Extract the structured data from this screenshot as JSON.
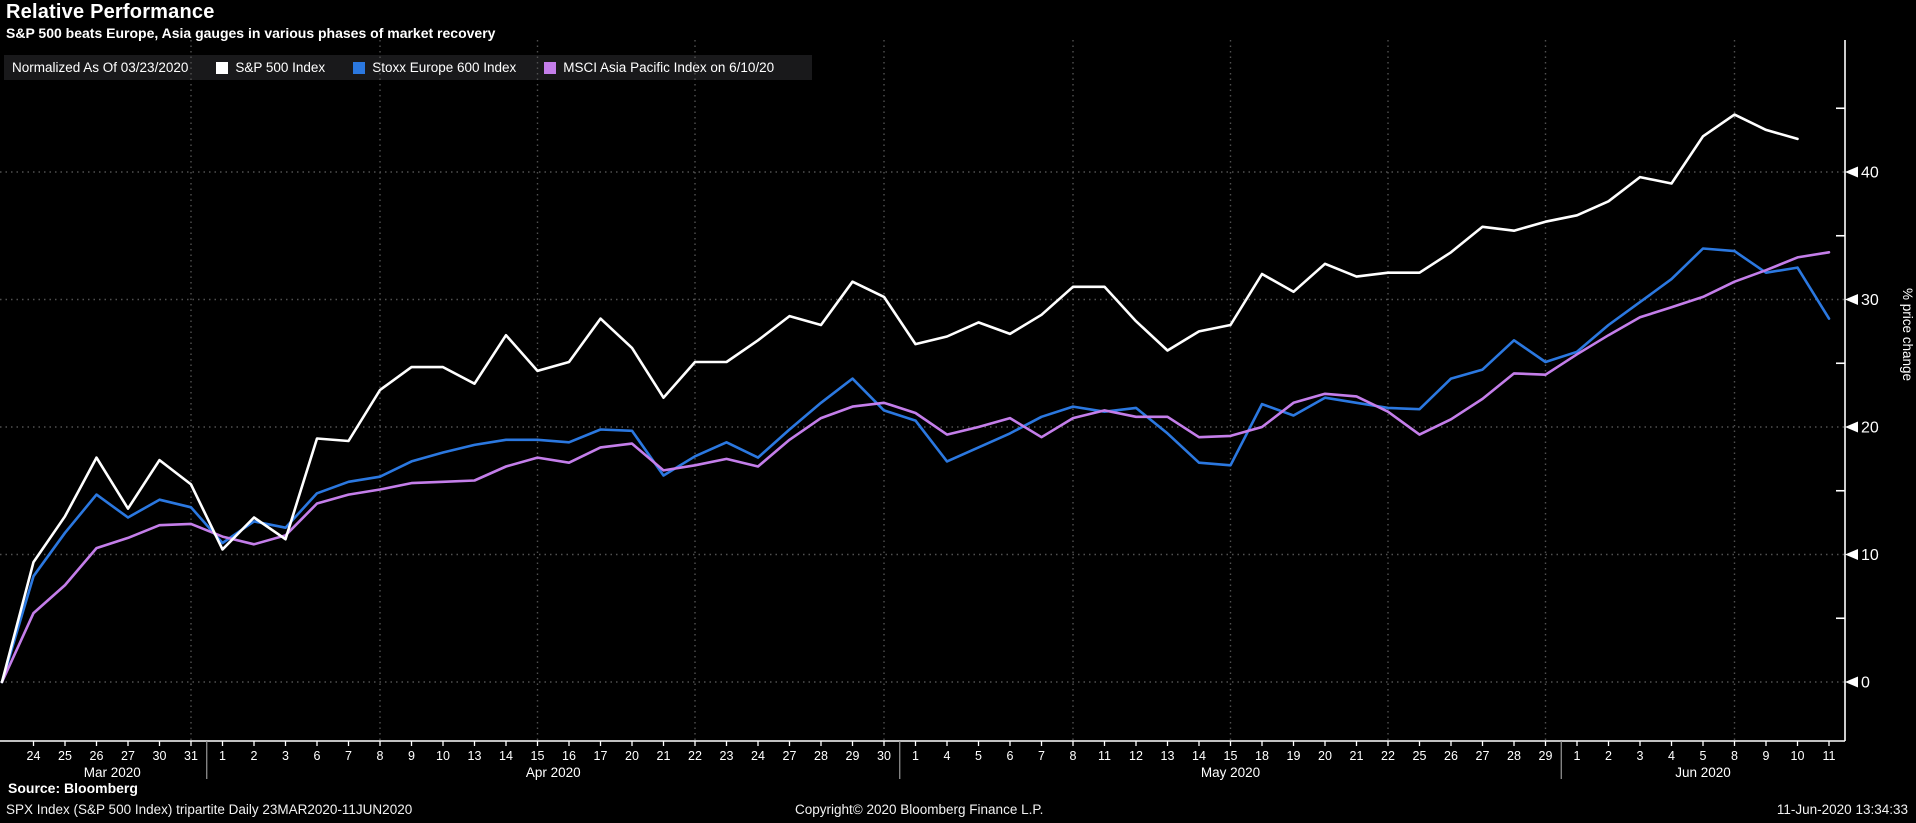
{
  "header": {
    "title": "Relative Performance",
    "subtitle": "S&P 500 beats Europe, Asia gauges in various phases of market recovery"
  },
  "legend": {
    "note": "Normalized As Of 03/23/2020",
    "items": [
      {
        "label": "S&P 500 Index",
        "color": "#FFFFFF"
      },
      {
        "label": "Stoxx Europe 600 Index",
        "color": "#2B78E0"
      },
      {
        "label": "MSCI Asia Pacific Index on 6/10/20",
        "color": "#C47EEA"
      }
    ]
  },
  "chart_data": {
    "type": "line",
    "title": "Relative Performance",
    "ylabel": "% price change",
    "ylim": [
      -4.6,
      50.4
    ],
    "grid": "dotted",
    "legend_position": "top-left",
    "y_ticks": [
      0,
      10,
      20,
      30,
      40
    ],
    "y_minor_ticks": [
      5,
      15,
      25,
      35,
      45
    ],
    "dates": [
      "3/23",
      "3/24",
      "3/25",
      "3/26",
      "3/27",
      "3/30",
      "3/31",
      "4/1",
      "4/2",
      "4/3",
      "4/6",
      "4/7",
      "4/8",
      "4/9",
      "4/10",
      "4/13",
      "4/14",
      "4/15",
      "4/16",
      "4/17",
      "4/20",
      "4/21",
      "4/22",
      "4/23",
      "4/24",
      "4/27",
      "4/28",
      "4/29",
      "4/30",
      "5/1",
      "5/4",
      "5/5",
      "5/6",
      "5/7",
      "5/8",
      "5/11",
      "5/12",
      "5/13",
      "5/14",
      "5/15",
      "5/18",
      "5/19",
      "5/20",
      "5/21",
      "5/22",
      "5/25",
      "5/26",
      "5/27",
      "5/28",
      "5/29",
      "6/1",
      "6/2",
      "6/3",
      "6/4",
      "6/5",
      "6/8",
      "6/9",
      "6/10",
      "6/11"
    ],
    "x_tick_labels": [
      "24",
      "25",
      "26",
      "27",
      "30",
      "31",
      "1",
      "2",
      "3",
      "6",
      "7",
      "8",
      "9",
      "10",
      "13",
      "14",
      "15",
      "16",
      "17",
      "20",
      "21",
      "22",
      "23",
      "24",
      "27",
      "28",
      "29",
      "30",
      "1",
      "4",
      "5",
      "6",
      "7",
      "8",
      "11",
      "12",
      "13",
      "14",
      "15",
      "18",
      "19",
      "20",
      "21",
      "22",
      "25",
      "26",
      "27",
      "28",
      "29",
      "1",
      "2",
      "3",
      "4",
      "5",
      "8",
      "9",
      "10",
      "11"
    ],
    "month_groups": [
      {
        "label": "Mar 2020",
        "center_index": 3.5
      },
      {
        "label": "Apr 2020",
        "center_index": 17.5
      },
      {
        "label": "May 2020",
        "center_index": 39
      },
      {
        "label": "Jun 2020",
        "center_index": 54
      }
    ],
    "month_separators_after_index": [
      6,
      28,
      49
    ],
    "vgrid_indices": [
      6,
      12,
      17,
      22,
      28,
      34,
      39,
      44,
      49,
      55
    ],
    "series": [
      {
        "name": "S&P 500 Index",
        "color": "#FFFFFF",
        "values": [
          0,
          9.4,
          13.0,
          17.6,
          13.6,
          17.4,
          15.5,
          10.4,
          12.9,
          11.2,
          19.1,
          18.9,
          22.9,
          24.7,
          24.7,
          23.4,
          27.2,
          24.4,
          25.1,
          28.5,
          26.2,
          22.3,
          25.1,
          25.1,
          26.8,
          28.7,
          28.0,
          31.4,
          30.2,
          26.5,
          27.1,
          28.2,
          27.3,
          28.8,
          31.0,
          31.0,
          28.3,
          26.0,
          27.5,
          28.0,
          32.0,
          30.6,
          32.8,
          31.8,
          32.1,
          32.1,
          33.7,
          35.7,
          35.4,
          36.1,
          36.6,
          37.7,
          39.6,
          39.1,
          42.8,
          44.5,
          43.3,
          42.6,
          null
        ]
      },
      {
        "name": "Stoxx Europe 600 Index",
        "color": "#2B78E0",
        "values": [
          0,
          8.3,
          11.7,
          14.7,
          12.9,
          14.3,
          13.7,
          10.9,
          12.6,
          12.1,
          14.8,
          15.7,
          16.1,
          17.3,
          18.0,
          18.6,
          19.0,
          19.0,
          18.8,
          19.8,
          19.7,
          16.2,
          17.7,
          18.8,
          17.6,
          19.8,
          21.9,
          23.8,
          21.3,
          20.5,
          17.3,
          18.4,
          19.5,
          20.8,
          21.6,
          21.2,
          21.5,
          19.5,
          17.2,
          17.0,
          21.8,
          20.9,
          22.3,
          21.9,
          21.5,
          21.4,
          23.8,
          24.5,
          26.8,
          25.1,
          25.9,
          28.0,
          29.8,
          31.6,
          34.0,
          33.8,
          32.1,
          32.5,
          28.5
        ]
      },
      {
        "name": "MSCI Asia Pacific Index on 6/10/20",
        "color": "#C47EEA",
        "values": [
          0,
          5.4,
          7.6,
          10.5,
          11.3,
          12.3,
          12.4,
          11.4,
          10.8,
          11.5,
          14.0,
          14.7,
          15.1,
          15.6,
          15.7,
          15.8,
          16.9,
          17.6,
          17.2,
          18.4,
          18.7,
          16.6,
          17.0,
          17.5,
          16.9,
          19.0,
          20.7,
          21.6,
          21.9,
          21.1,
          19.4,
          20.0,
          20.7,
          19.2,
          20.7,
          21.3,
          20.8,
          20.8,
          19.2,
          19.3,
          20.0,
          21.9,
          22.6,
          22.4,
          21.2,
          19.4,
          20.6,
          22.2,
          24.2,
          24.1,
          25.7,
          27.2,
          28.6,
          29.4,
          30.2,
          31.4,
          32.3,
          33.3,
          33.7
        ]
      }
    ]
  },
  "footer": {
    "source": "Source: Bloomberg",
    "left": "SPX Index (S&P 500 Index) tripartite  Daily 23MAR2020-11JUN2020",
    "center": "Copyright© 2020 Bloomberg Finance L.P.",
    "right": "11-Jun-2020 13:34:33"
  },
  "colors": {
    "background": "#000000",
    "legend_band": "#19191B",
    "gridline": "#505050",
    "axis": "#FFFFFF"
  }
}
